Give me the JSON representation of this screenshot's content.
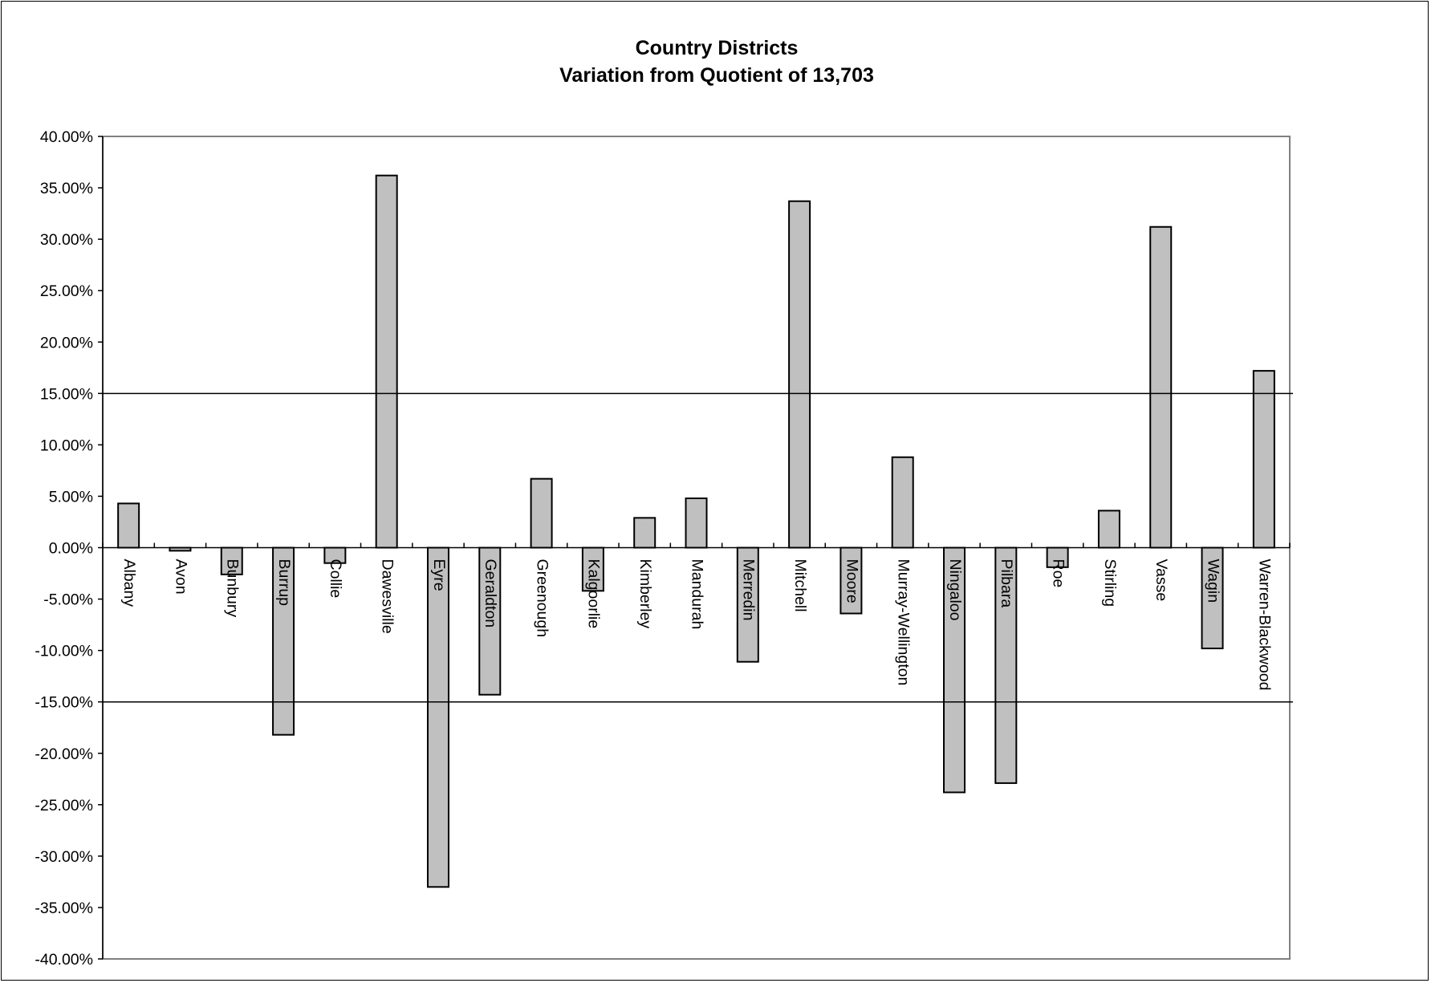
{
  "chart_data": {
    "type": "bar",
    "title": "Country Districts",
    "subtitle": "Variation from Quotient of 13,703",
    "xlabel": "",
    "ylabel": "",
    "ylim": [
      -40,
      40
    ],
    "y_ticks": [
      40,
      35,
      30,
      25,
      20,
      15,
      10,
      5,
      0,
      -5,
      -10,
      -15,
      -20,
      -25,
      -30,
      -35,
      -40
    ],
    "y_tick_labels": [
      "40.00%",
      "35.00%",
      "30.00%",
      "25.00%",
      "20.00%",
      "15.00%",
      "10.00%",
      "5.00%",
      "0.00%",
      "-5.00%",
      "-10.00%",
      "-15.00%",
      "-20.00%",
      "-25.00%",
      "-30.00%",
      "-35.00%",
      "-40.00%"
    ],
    "reference_lines": [
      15,
      -15
    ],
    "grid": false,
    "legend": "none",
    "bar_color": "#c0c0c0",
    "categories": [
      "Albany",
      "Avon",
      "Bunbury",
      "Burrup",
      "Collie",
      "Dawesville",
      "Eyre",
      "Geraldton",
      "Greenough",
      "Kalgoorlie",
      "Kimberley",
      "Mandurah",
      "Merredin",
      "Mitchell",
      "Moore",
      "Murray-Wellington",
      "Ningaloo",
      "Pilbara",
      "Roe",
      "Stirling",
      "Vasse",
      "Wagin",
      "Warren-Blackwood"
    ],
    "values": [
      4.3,
      -0.3,
      -2.6,
      -18.2,
      -1.5,
      36.2,
      -33.0,
      -14.3,
      6.7,
      -4.2,
      2.9,
      4.8,
      -11.1,
      33.7,
      -6.4,
      8.8,
      -23.8,
      -22.9,
      -1.9,
      3.6,
      31.2,
      -9.8,
      17.2
    ]
  }
}
